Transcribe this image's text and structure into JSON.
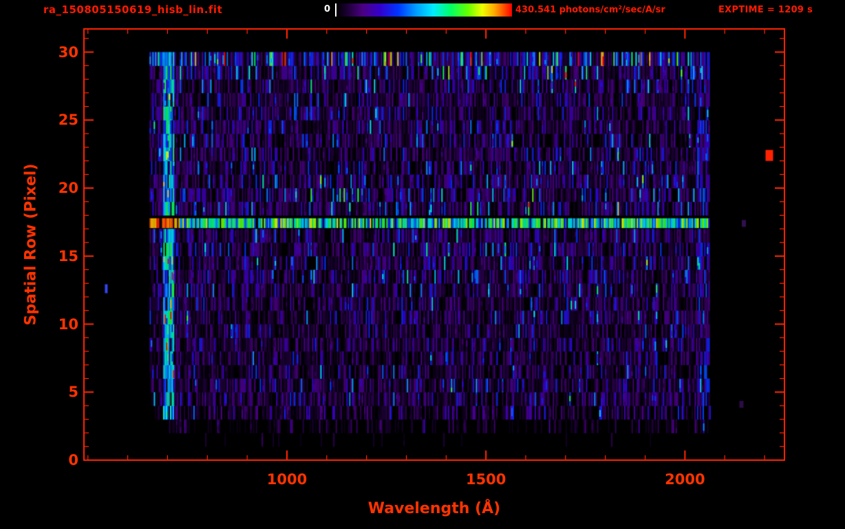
{
  "header": {
    "filename": "ra_150805150619_hisb_lin.fit",
    "colorbar_min_label": "0",
    "colorbar_max_label": "430.541 photons/cm²/sec/A/sr",
    "exptime_label": "EXPTIME = 1209 s"
  },
  "colors": {
    "background": "#000000",
    "frame": "#ff2200",
    "axis_text": "#ff3300",
    "title_text": "#ff1a00",
    "colorbar_min_text": "#ffffff"
  },
  "chart_data": {
    "type": "heatmap",
    "title": "ra_150805150619_hisb_lin.fit",
    "xlabel": "Wavelength (Å)",
    "ylabel": "Spatial Row (Pixel)",
    "xlim": [
      490,
      2250
    ],
    "ylim": [
      0,
      31.7
    ],
    "x_ticks": [
      1000,
      1500,
      2000
    ],
    "x_tick_labels": [
      "1000",
      "1500",
      "2000"
    ],
    "x_minor_interval": 100,
    "y_ticks": [
      0,
      5,
      10,
      15,
      20,
      25,
      30
    ],
    "y_tick_labels": [
      "0",
      "5",
      "10",
      "15",
      "20",
      "25",
      "30"
    ],
    "y_minor_interval": 1,
    "colorbar": {
      "min": 0,
      "max": 430.541,
      "units": "photons/cm²/sec/A/sr"
    },
    "exposure_time_s": 1209,
    "seed": 20150805,
    "colormap_stops": [
      [
        0.0,
        "#000000"
      ],
      [
        0.06,
        "#1a0033"
      ],
      [
        0.15,
        "#4b0082"
      ],
      [
        0.25,
        "#3300cc"
      ],
      [
        0.35,
        "#0033ff"
      ],
      [
        0.45,
        "#0099ff"
      ],
      [
        0.55,
        "#00eaff"
      ],
      [
        0.65,
        "#00ff66"
      ],
      [
        0.75,
        "#66ff00"
      ],
      [
        0.83,
        "#eeff00"
      ],
      [
        0.9,
        "#ffaa00"
      ],
      [
        1.0,
        "#ff0000"
      ]
    ],
    "data_extent": {
      "wavelength_min": 655,
      "wavelength_max": 2062,
      "row_min": 1,
      "row_max": 30
    },
    "defaults": {
      "density": 0.93,
      "wl_start": 655,
      "wl_end": 2062
    },
    "row_profile": [
      {
        "row": 1,
        "mean": 0.05,
        "density": 0.05,
        "wl_start": 760
      },
      {
        "row": 2,
        "mean": 0.06,
        "density": 0.45,
        "wl_start": 690
      },
      {
        "row": 3,
        "mean": 0.09,
        "density": 0.88,
        "wl_start": 668
      },
      {
        "row": 4,
        "mean": 0.11
      },
      {
        "row": 5,
        "mean": 0.12
      },
      {
        "row": 6,
        "mean": 0.1
      },
      {
        "row": 7,
        "mean": 0.1
      },
      {
        "row": 8,
        "mean": 0.11
      },
      {
        "row": 9,
        "mean": 0.1
      },
      {
        "row": 10,
        "mean": 0.12
      },
      {
        "row": 11,
        "mean": 0.11
      },
      {
        "row": 12,
        "mean": 0.12
      },
      {
        "row": 13,
        "mean": 0.13
      },
      {
        "row": 14,
        "mean": 0.12
      },
      {
        "row": 15,
        "mean": 0.13
      },
      {
        "row": 16,
        "mean": 0.14
      },
      {
        "row": 17,
        "mean": 0.55,
        "bright": true
      },
      {
        "row": 18,
        "mean": 0.16
      },
      {
        "row": 19,
        "mean": 0.15
      },
      {
        "row": 20,
        "mean": 0.13
      },
      {
        "row": 21,
        "mean": 0.12
      },
      {
        "row": 22,
        "mean": 0.13
      },
      {
        "row": 23,
        "mean": 0.12
      },
      {
        "row": 24,
        "mean": 0.13
      },
      {
        "row": 25,
        "mean": 0.12
      },
      {
        "row": 26,
        "mean": 0.12
      },
      {
        "row": 27,
        "mean": 0.13
      },
      {
        "row": 28,
        "mean": 0.15
      },
      {
        "row": 29,
        "mean": 0.28,
        "density": 0.97
      }
    ],
    "bright_features": {
      "emission_row": {
        "row": 17.5,
        "wavelength_min": 690,
        "wavelength_max": 2060,
        "saturated_wl_max": 728
      },
      "left_column": {
        "wl_min": 688,
        "wl_max": 716
      },
      "right_edge": {
        "wl_min": 2030
      }
    },
    "outliers": [
      {
        "name": "hot-pixel-blob",
        "wavelength": 2212,
        "row": 22.4,
        "color": "#ff2200",
        "w": 11,
        "h": 16
      },
      {
        "name": "stray-blue-pixel",
        "wavelength": 546,
        "row": 12.6,
        "color": "#3344ee",
        "w": 4,
        "h": 13
      },
      {
        "name": "faint-purple-dash-upper",
        "wavelength": 2148,
        "row": 17.4,
        "color": "#30104f",
        "w": 6,
        "h": 10
      },
      {
        "name": "faint-purple-dash-lower",
        "wavelength": 2142,
        "row": 4.1,
        "color": "#2a0d47",
        "w": 6,
        "h": 10
      }
    ]
  }
}
